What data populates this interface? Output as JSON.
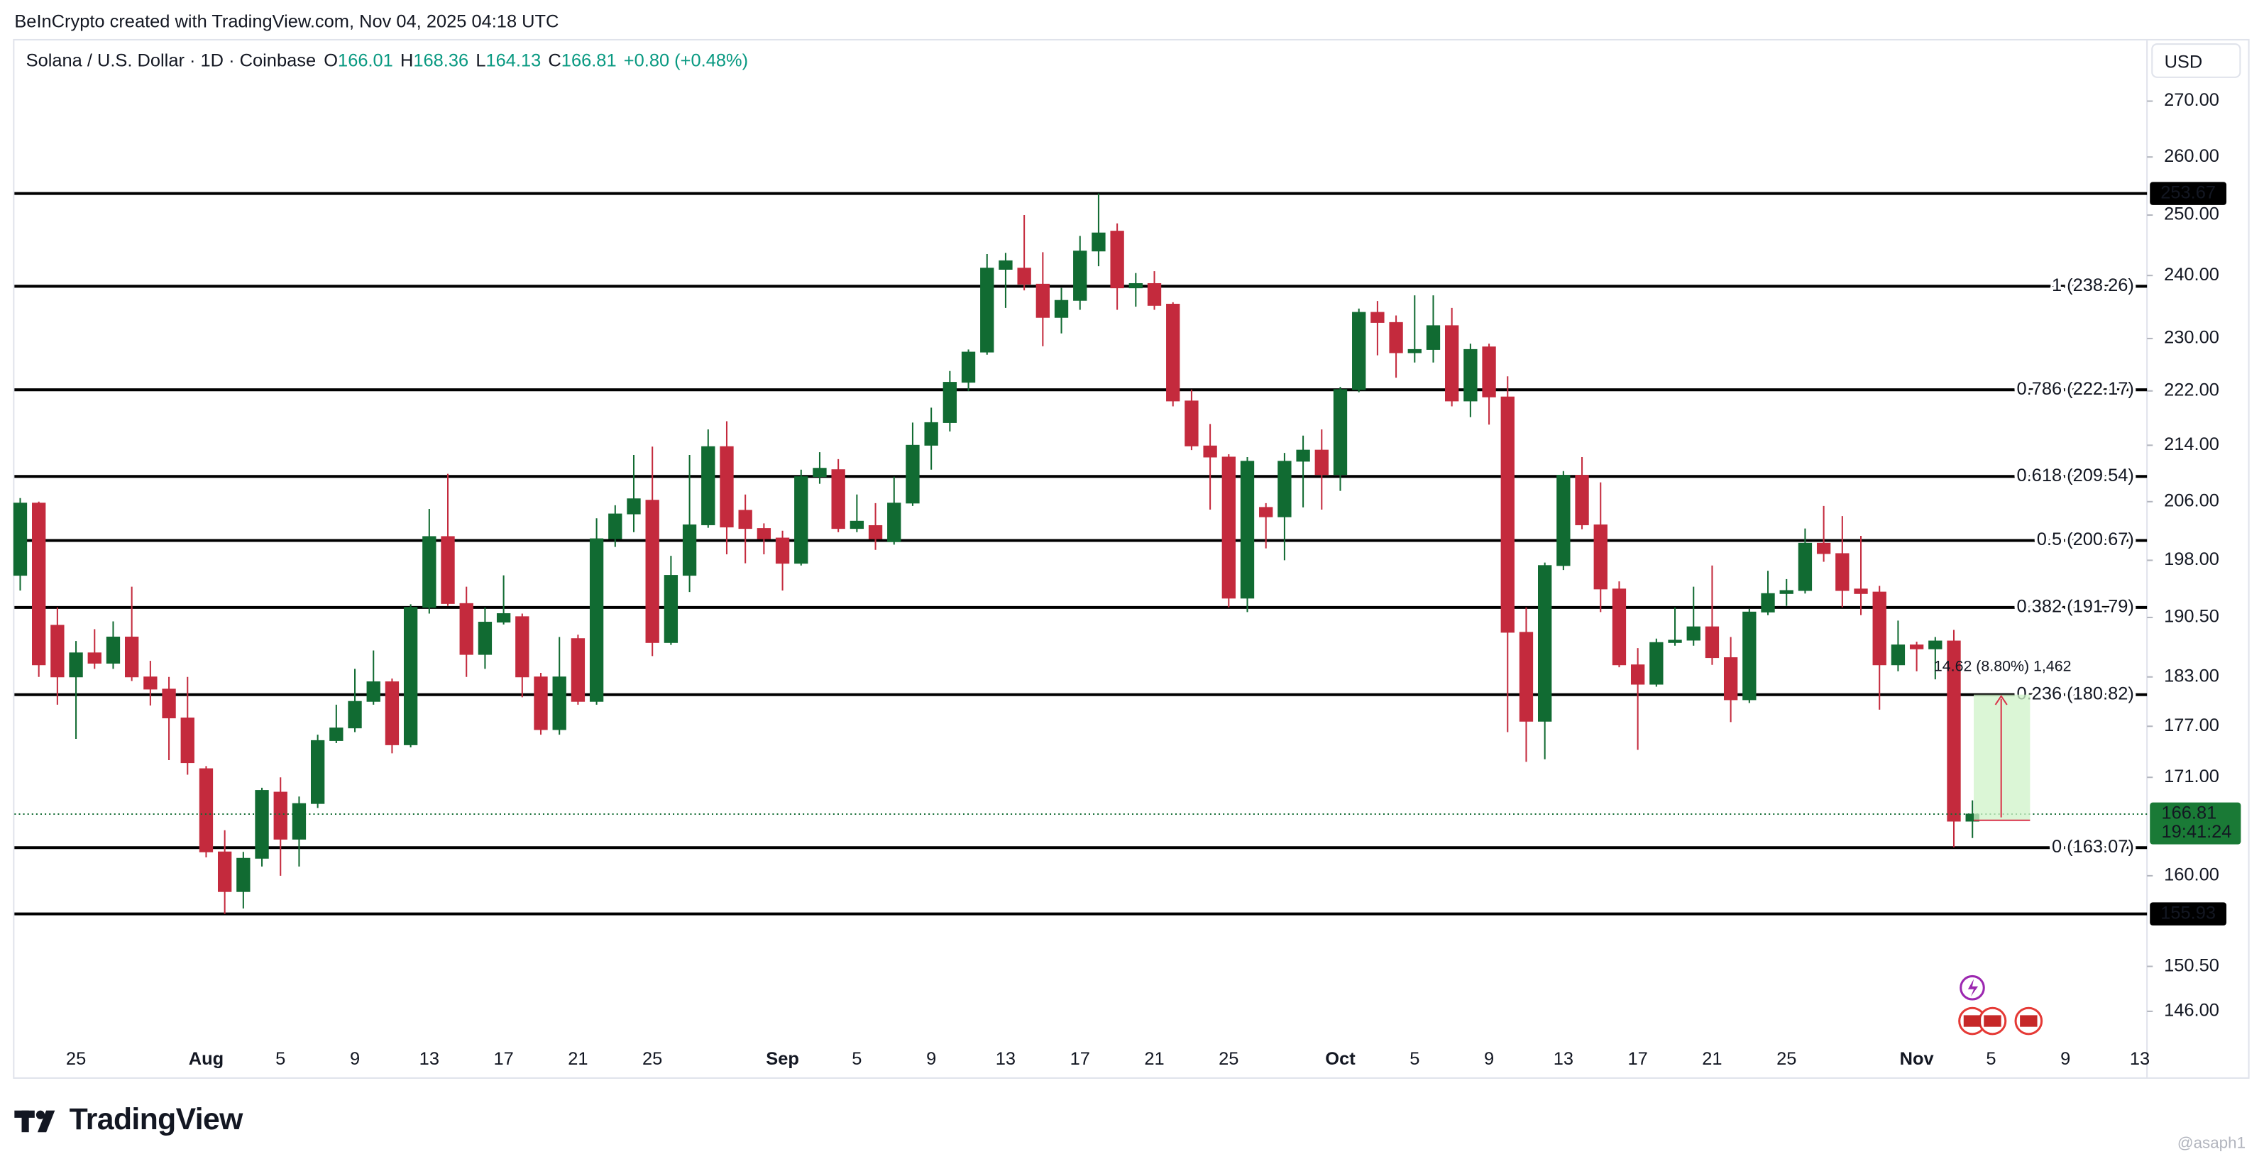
{
  "header": {
    "credit": "BeInCrypto created with TradingView.com, Nov 04, 2025 04:18 UTC",
    "currency": "USD",
    "brand": "TradingView",
    "watermark": "@asaph1"
  },
  "chart_data": {
    "type": "candlestick",
    "symbol": "Solana / U.S. Dollar · 1D · Coinbase",
    "legend_labels": [
      "O",
      "H",
      "L",
      "C"
    ],
    "change": "+0.80 (+0.48%)",
    "countdown": "19:41:24",
    "measure_label": "14.62 (8.80%) 1,462",
    "up_color": "#116b32",
    "down_color": "#c42a3d",
    "log_scale": true,
    "ylim": [
      143.5,
      281.3
    ],
    "yticks": [
      {
        "value": 270,
        "label": "270.00"
      },
      {
        "value": 260,
        "label": "260.00"
      },
      {
        "value": 250,
        "label": "250.00"
      },
      {
        "value": 240,
        "label": "240.00"
      },
      {
        "value": 230,
        "label": "230.00"
      },
      {
        "value": 222,
        "label": "222.00"
      },
      {
        "value": 214,
        "label": "214.00"
      },
      {
        "value": 206,
        "label": "206.00"
      },
      {
        "value": 198,
        "label": "198.00"
      },
      {
        "value": 190.5,
        "label": "190.50"
      },
      {
        "value": 183,
        "label": "183.00"
      },
      {
        "value": 177,
        "label": "177.00"
      },
      {
        "value": 171,
        "label": "171.00"
      },
      {
        "value": 160,
        "label": "160.00"
      },
      {
        "value": 150.5,
        "label": "150.50"
      },
      {
        "value": 146,
        "label": "146.00"
      }
    ],
    "fib_levels": [
      {
        "value": 238.26,
        "label": "1 (238.26)"
      },
      {
        "value": 222.17,
        "label": "0.786 (222.17)"
      },
      {
        "value": 209.54,
        "label": "0.618 (209.54)"
      },
      {
        "value": 200.67,
        "label": "0.5 (200.67)"
      },
      {
        "value": 191.79,
        "label": "0.382 (191.79)"
      },
      {
        "value": 180.82,
        "label": "0.236 (180.82)"
      },
      {
        "value": 163.07,
        "label": "0 (163.07)"
      }
    ],
    "price_lines": [
      253.67,
      155.93
    ],
    "categories": [
      null,
      null,
      null,
      "25",
      null,
      null,
      null,
      null,
      null,
      null,
      "Aug",
      null,
      null,
      null,
      "5",
      null,
      null,
      null,
      "9",
      null,
      null,
      null,
      "13",
      null,
      null,
      null,
      "17",
      null,
      null,
      null,
      "21",
      null,
      null,
      null,
      "25",
      null,
      null,
      null,
      null,
      null,
      null,
      "Sep",
      null,
      null,
      null,
      "5",
      null,
      null,
      null,
      "9",
      null,
      null,
      null,
      "13",
      null,
      null,
      null,
      "17",
      null,
      null,
      null,
      "21",
      null,
      null,
      null,
      "25",
      null,
      null,
      null,
      null,
      null,
      "Oct",
      null,
      null,
      null,
      "5",
      null,
      null,
      null,
      "9",
      null,
      null,
      null,
      "13",
      null,
      null,
      null,
      "17",
      null,
      null,
      null,
      "21",
      null,
      null,
      null,
      "25",
      null,
      null,
      null,
      null,
      null,
      null,
      "Nov",
      null,
      null,
      null,
      "5",
      null,
      null,
      null,
      "9",
      null,
      null,
      null,
      "13"
    ],
    "open": [
      196,
      205.8,
      189.5,
      183,
      186,
      184.7,
      188,
      183,
      181.5,
      178,
      172,
      162.6,
      158.3,
      161.9,
      169.3,
      164,
      168,
      175.3,
      176.8,
      180,
      182.4,
      174.8,
      191.8,
      201.2,
      192.3,
      185.8,
      189.9,
      190.6,
      183,
      176.6,
      187.8,
      180,
      200.9,
      204.3,
      206.2,
      187.3,
      196,
      202.8,
      213.8,
      204.8,
      202.3,
      201,
      197.6,
      209.5,
      210.5,
      202.3,
      202.7,
      200.5,
      205.8,
      214,
      217.3,
      223.3,
      227.9,
      241,
      241.2,
      238.6,
      233.3,
      236,
      244,
      247.3,
      238,
      238.7,
      235.4,
      220.5,
      213.9,
      212.3,
      193,
      205.2,
      203.9,
      211.7,
      213.3,
      209.8,
      222.2,
      234.1,
      232.5,
      227.8,
      228.3,
      232,
      220.5,
      228.7,
      221.1,
      188.6,
      177.6,
      197.3,
      209.7,
      202.8,
      194.2,
      184.5,
      182.1,
      187.3,
      187.6,
      189.3,
      185.4,
      180.2,
      191.2,
      193.6,
      194,
      200.3,
      198.9,
      194.2,
      193.8,
      184.5,
      187,
      186.5,
      187.5,
      166.01,
      null,
      null,
      null,
      null,
      null,
      null,
      null,
      null,
      null
    ],
    "high": [
      206.5,
      206,
      191.8,
      187.5,
      189,
      190,
      194.5,
      185,
      183,
      183,
      172.3,
      165,
      162.6,
      169.8,
      171,
      168.8,
      176,
      179.6,
      184,
      186.3,
      182.8,
      192.2,
      205,
      209.9,
      194.5,
      191.8,
      196,
      191,
      183.5,
      188,
      188.3,
      203.7,
      205.5,
      212.6,
      213.8,
      198.6,
      212.6,
      216.3,
      217.5,
      207,
      203,
      202,
      210.5,
      213,
      212,
      207,
      205.8,
      209.5,
      217.3,
      219.5,
      225,
      228.3,
      243.5,
      243.7,
      250,
      243.8,
      238,
      246.5,
      253.67,
      248.6,
      240.4,
      240.7,
      235.7,
      222.2,
      217.1,
      212.7,
      212.3,
      205.8,
      212.9,
      215.4,
      216.3,
      222.6,
      234.7,
      235.9,
      233.6,
      236.8,
      236.8,
      234.8,
      229.2,
      229.2,
      224.2,
      191.8,
      197.7,
      210.3,
      212.3,
      208.7,
      195.2,
      186.6,
      187.8,
      191.8,
      194.5,
      197.3,
      188,
      191.6,
      196.6,
      195.5,
      202.3,
      205.4,
      204,
      201.3,
      194.6,
      190.1,
      187.4,
      188,
      188.9,
      168.36,
      null,
      null,
      null,
      null,
      null,
      null,
      null,
      null,
      null
    ],
    "low": [
      194,
      183,
      179.6,
      175.5,
      184,
      184,
      182.5,
      179.5,
      173,
      171.3,
      162,
      155.93,
      156.5,
      161,
      160,
      161,
      167.5,
      175,
      176.3,
      179.6,
      173.8,
      174.5,
      191,
      192,
      183,
      184,
      189.6,
      180.5,
      176,
      176,
      179.6,
      179.6,
      199.8,
      201.8,
      185.6,
      187,
      193.8,
      202.4,
      198.8,
      197.6,
      198.8,
      194,
      197.3,
      208.5,
      201.8,
      201.8,
      199.4,
      200.1,
      205.4,
      210.5,
      216,
      222,
      227.5,
      234.8,
      237.6,
      228.8,
      230.8,
      234.5,
      241.5,
      234.5,
      235,
      234.5,
      219.7,
      213.3,
      204.9,
      191.8,
      191.2,
      199.6,
      198,
      205.2,
      204.9,
      207.5,
      221.8,
      227.4,
      224,
      226.3,
      226.3,
      219.7,
      218.1,
      217,
      176.3,
      172.8,
      173.1,
      196.7,
      202.2,
      191.2,
      184.2,
      174.2,
      181.8,
      186.9,
      186.9,
      184.5,
      177.5,
      179.8,
      190.8,
      192,
      193.6,
      197.8,
      191.8,
      190.8,
      179,
      183.7,
      183.7,
      182.7,
      163.1,
      164.13,
      null,
      null,
      null,
      null,
      null,
      null,
      null,
      null,
      null
    ],
    "close": [
      205.8,
      184.5,
      183,
      186,
      184.7,
      188,
      183,
      181.5,
      178,
      172.7,
      162.6,
      158.3,
      161.9,
      169.5,
      164,
      168,
      175.3,
      176.8,
      180,
      182.4,
      174.8,
      191.8,
      201.2,
      192.3,
      185.8,
      189.9,
      191,
      183,
      176.6,
      183,
      180,
      200.9,
      204.3,
      206.4,
      187.3,
      196,
      202.8,
      213.8,
      202.5,
      202.3,
      200.9,
      197.6,
      209.5,
      210.7,
      202.3,
      203.3,
      200.9,
      205.8,
      214,
      217.3,
      223.3,
      227.9,
      241.2,
      242.4,
      238.6,
      233.3,
      236,
      244,
      247,
      238,
      238.7,
      235.2,
      220.5,
      213.9,
      212.3,
      193,
      211.7,
      203.9,
      211.7,
      213.3,
      209.8,
      222.2,
      234.1,
      232.5,
      227.8,
      228.3,
      232,
      220.5,
      228.3,
      221.1,
      188.6,
      177.6,
      197.3,
      209.7,
      202.8,
      194.2,
      184.5,
      182.1,
      187.3,
      187.6,
      189.3,
      185.4,
      180.2,
      191.2,
      193.6,
      194,
      200.3,
      198.9,
      194,
      193.6,
      184.5,
      187,
      186.5,
      187.5,
      166.01,
      166.81,
      null,
      null,
      null,
      null,
      null,
      null,
      null,
      null,
      null
    ]
  }
}
